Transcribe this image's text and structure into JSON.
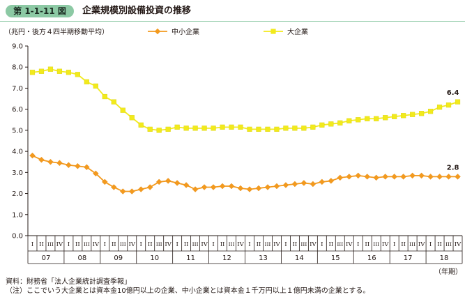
{
  "figure": {
    "number": "第 1-1-11 図",
    "title": "企業規模別設備投資の推移"
  },
  "chart_data": {
    "type": "line",
    "unit_label": "（兆円・後方４四半期移動平均）",
    "year_suffix": "（年期）",
    "quarters": [
      "I",
      "II",
      "III",
      "IV"
    ],
    "years": [
      "07",
      "08",
      "09",
      "10",
      "11",
      "12",
      "13",
      "14",
      "15",
      "16",
      "17",
      "18"
    ],
    "ylim": [
      0,
      9
    ],
    "yticks": [
      "0.0",
      "1.0",
      "2.0",
      "3.0",
      "4.0",
      "5.0",
      "6.0",
      "7.0",
      "8.0",
      "9.0"
    ],
    "grid": false,
    "legend_position": "top",
    "series": [
      {
        "name": "中小企業",
        "color": "#f39a1e",
        "marker": "diamond",
        "end_label": "2.8",
        "values": [
          3.8,
          3.6,
          3.5,
          3.45,
          3.35,
          3.3,
          3.25,
          2.95,
          2.55,
          2.3,
          2.1,
          2.1,
          2.2,
          2.3,
          2.55,
          2.6,
          2.5,
          2.4,
          2.2,
          2.3,
          2.3,
          2.35,
          2.35,
          2.25,
          2.2,
          2.25,
          2.3,
          2.35,
          2.4,
          2.45,
          2.5,
          2.45,
          2.55,
          2.6,
          2.75,
          2.8,
          2.85,
          2.8,
          2.75,
          2.8,
          2.8,
          2.8,
          2.85,
          2.85,
          2.8,
          2.8,
          2.8,
          2.8
        ]
      },
      {
        "name": "大企業",
        "color": "#f2ea1c",
        "marker": "square",
        "end_label": "6.4",
        "values": [
          7.75,
          7.8,
          7.9,
          7.8,
          7.75,
          7.65,
          7.3,
          7.1,
          6.6,
          6.35,
          5.95,
          5.6,
          5.25,
          5.05,
          5.0,
          5.05,
          5.15,
          5.1,
          5.1,
          5.1,
          5.1,
          5.15,
          5.15,
          5.15,
          5.05,
          5.05,
          5.05,
          5.05,
          5.1,
          5.1,
          5.1,
          5.15,
          5.25,
          5.3,
          5.35,
          5.45,
          5.5,
          5.55,
          5.55,
          5.6,
          5.65,
          5.7,
          5.75,
          5.8,
          5.9,
          6.1,
          6.2,
          6.35
        ]
      }
    ]
  },
  "notes": {
    "source": "資料：財務省「法人企業統計調査季報」",
    "note": "（注）ここでいう大企業とは資本金10億円以上の企業、中小企業とは資本金１千万円以上１億円未満の企業とする。"
  }
}
